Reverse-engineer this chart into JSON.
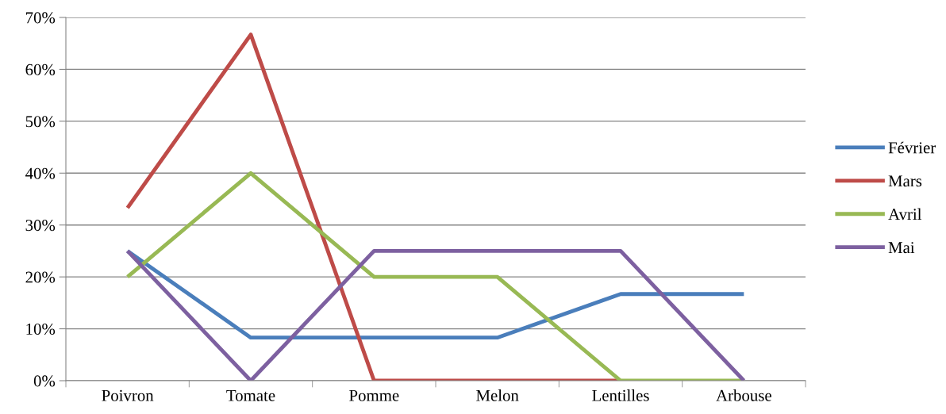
{
  "chart_data": {
    "type": "line",
    "categories": [
      "Poivron",
      "Tomate",
      "Pomme",
      "Melon",
      "Lentilles",
      "Arbouse"
    ],
    "series": [
      {
        "name": "Février",
        "color": "#4a7ebb",
        "values": [
          25,
          8.3,
          8.3,
          8.3,
          16.7,
          16.7
        ]
      },
      {
        "name": "Mars",
        "color": "#be4b48",
        "values": [
          33.3,
          66.7,
          0,
          0,
          0,
          null
        ]
      },
      {
        "name": "Avril",
        "color": "#98b954",
        "values": [
          20,
          40,
          20,
          20,
          0,
          0
        ]
      },
      {
        "name": "Mai",
        "color": "#7d60a0",
        "values": [
          25,
          0,
          25,
          25,
          25,
          0
        ]
      }
    ],
    "ylim": [
      0,
      70
    ],
    "yticks": [
      {
        "value": 0,
        "label": "0%"
      },
      {
        "value": 10,
        "label": "10%"
      },
      {
        "value": 20,
        "label": "20%"
      },
      {
        "value": 30,
        "label": "30%"
      },
      {
        "value": 40,
        "label": "40%"
      },
      {
        "value": 50,
        "label": "50%"
      },
      {
        "value": 60,
        "label": "60%"
      },
      {
        "value": 70,
        "label": "70%"
      }
    ],
    "grid": "y",
    "legend": "right",
    "marker": "none",
    "line_style": "solid"
  }
}
